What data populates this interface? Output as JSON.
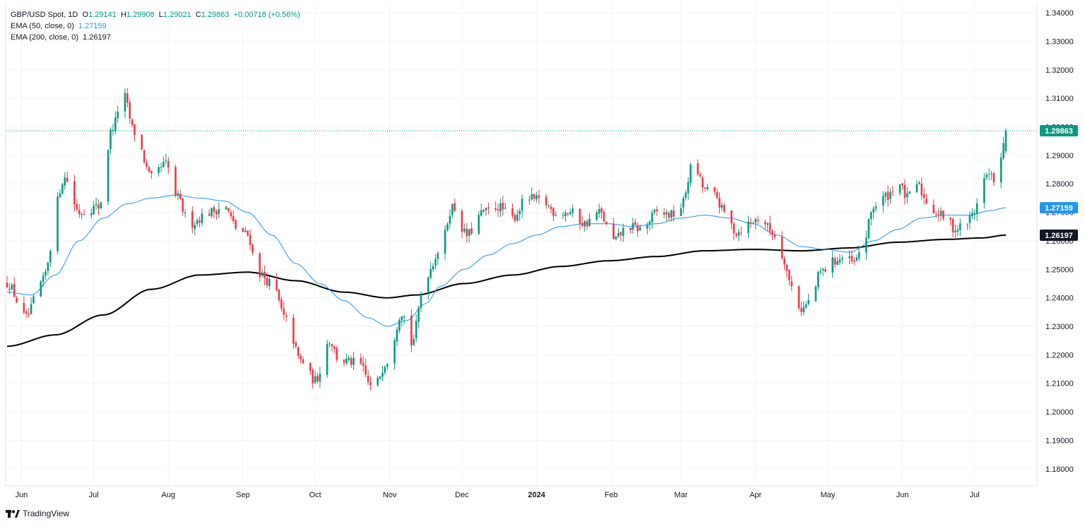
{
  "legend": {
    "symbol": "GBP/USD Spot, 1D",
    "open_label": "O",
    "open": "1.29141",
    "high_label": "H",
    "high": "1.29908",
    "low_label": "L",
    "low": "1.29021",
    "close_label": "C",
    "close": "1.29863",
    "change": "+0.00718 (+0.56%)",
    "ema50_label": "EMA (50, close, 0)",
    "ema50_value": "1.27159",
    "ema200_label": "EMA (200, close, 0)",
    "ema200_value": "1.26197"
  },
  "price_tags": {
    "last": "1.29863",
    "ema50": "1.27159",
    "ema200": "1.26197"
  },
  "branding": {
    "logo_text": "TradingView"
  },
  "colors": {
    "up": "#089981",
    "down": "#f23645",
    "ema50": "#2196f3",
    "ema200": "#000000",
    "grid": "#f0f3fa",
    "axis_text": "#131722",
    "last_price_line": "#089981"
  },
  "chart_data": {
    "type": "candlestick",
    "title": "GBP/USD Spot, 1D",
    "ylim": [
      1.174,
      1.3435
    ],
    "y_ticks": [
      "1.18000",
      "1.19000",
      "1.20000",
      "1.21000",
      "1.22000",
      "1.23000",
      "1.24000",
      "1.25000",
      "1.26000",
      "1.27000",
      "1.28000",
      "1.29000",
      "1.30000",
      "1.31000",
      "1.32000",
      "1.33000",
      "1.34000"
    ],
    "x_ticks": [
      {
        "label": "Jun",
        "day": 6
      },
      {
        "label": "Jul",
        "day": 36
      },
      {
        "label": "Aug",
        "day": 67
      },
      {
        "label": "Sep",
        "day": 98
      },
      {
        "label": "Oct",
        "day": 128
      },
      {
        "label": "Nov",
        "day": 159
      },
      {
        "label": "Dec",
        "day": 189
      },
      {
        "label": "2024",
        "day": 220
      },
      {
        "label": "Feb",
        "day": 251
      },
      {
        "label": "Mar",
        "day": 280
      },
      {
        "label": "Apr",
        "day": 311
      },
      {
        "label": "May",
        "day": 341
      },
      {
        "label": "Jun",
        "day": 372
      },
      {
        "label": "Jul",
        "day": 402
      }
    ],
    "price_anchors": [
      [
        0,
        1.245
      ],
      [
        8,
        1.233
      ],
      [
        14,
        1.245
      ],
      [
        24,
        1.282
      ],
      [
        30,
        1.27
      ],
      [
        38,
        1.272
      ],
      [
        44,
        1.3
      ],
      [
        48,
        1.312
      ],
      [
        53,
        1.298
      ],
      [
        60,
        1.282
      ],
      [
        66,
        1.287
      ],
      [
        70,
        1.276
      ],
      [
        76,
        1.266
      ],
      [
        84,
        1.27
      ],
      [
        90,
        1.272
      ],
      [
        96,
        1.264
      ],
      [
        100,
        1.262
      ],
      [
        104,
        1.249
      ],
      [
        110,
        1.245
      ],
      [
        116,
        1.232
      ],
      [
        122,
        1.218
      ],
      [
        128,
        1.211
      ],
      [
        134,
        1.225
      ],
      [
        138,
        1.218
      ],
      [
        146,
        1.217
      ],
      [
        152,
        1.208
      ],
      [
        158,
        1.218
      ],
      [
        164,
        1.235
      ],
      [
        168,
        1.224
      ],
      [
        174,
        1.248
      ],
      [
        180,
        1.257
      ],
      [
        185,
        1.272
      ],
      [
        191,
        1.262
      ],
      [
        198,
        1.27
      ],
      [
        204,
        1.272
      ],
      [
        210,
        1.268
      ],
      [
        216,
        1.275
      ],
      [
        222,
        1.274
      ],
      [
        228,
        1.27
      ],
      [
        234,
        1.27
      ],
      [
        240,
        1.266
      ],
      [
        246,
        1.27
      ],
      [
        252,
        1.26
      ],
      [
        258,
        1.265
      ],
      [
        264,
        1.264
      ],
      [
        270,
        1.27
      ],
      [
        276,
        1.269
      ],
      [
        280,
        1.272
      ],
      [
        285,
        1.287
      ],
      [
        290,
        1.278
      ],
      [
        294,
        1.276
      ],
      [
        298,
        1.27
      ],
      [
        303,
        1.263
      ],
      [
        308,
        1.266
      ],
      [
        313,
        1.268
      ],
      [
        318,
        1.263
      ],
      [
        322,
        1.255
      ],
      [
        326,
        1.244
      ],
      [
        330,
        1.236
      ],
      [
        334,
        1.239
      ],
      [
        338,
        1.249
      ],
      [
        344,
        1.253
      ],
      [
        348,
        1.254
      ],
      [
        352,
        1.252
      ],
      [
        356,
        1.26
      ],
      [
        360,
        1.272
      ],
      [
        366,
        1.276
      ],
      [
        370,
        1.281
      ],
      [
        374,
        1.275
      ],
      [
        378,
        1.28
      ],
      [
        382,
        1.274
      ],
      [
        386,
        1.27
      ],
      [
        390,
        1.268
      ],
      [
        394,
        1.264
      ],
      [
        398,
        1.266
      ],
      [
        402,
        1.27
      ],
      [
        404,
        1.278
      ],
      [
        407,
        1.283
      ],
      [
        410,
        1.282
      ],
      [
        413,
        1.288
      ],
      [
        415,
        1.2986
      ]
    ],
    "ema50_anchors": [
      [
        0,
        1.242
      ],
      [
        10,
        1.241
      ],
      [
        20,
        1.248
      ],
      [
        30,
        1.26
      ],
      [
        40,
        1.268
      ],
      [
        50,
        1.273
      ],
      [
        60,
        1.275
      ],
      [
        70,
        1.276
      ],
      [
        80,
        1.275
      ],
      [
        90,
        1.274
      ],
      [
        100,
        1.27
      ],
      [
        110,
        1.262
      ],
      [
        120,
        1.252
      ],
      [
        130,
        1.245
      ],
      [
        140,
        1.239
      ],
      [
        150,
        1.233
      ],
      [
        158,
        1.23
      ],
      [
        166,
        1.232
      ],
      [
        174,
        1.238
      ],
      [
        180,
        1.244
      ],
      [
        190,
        1.25
      ],
      [
        200,
        1.255
      ],
      [
        210,
        1.259
      ],
      [
        220,
        1.262
      ],
      [
        230,
        1.265
      ],
      [
        240,
        1.266
      ],
      [
        250,
        1.266
      ],
      [
        260,
        1.265
      ],
      [
        270,
        1.266
      ],
      [
        280,
        1.268
      ],
      [
        290,
        1.269
      ],
      [
        300,
        1.268
      ],
      [
        310,
        1.266
      ],
      [
        320,
        1.262
      ],
      [
        330,
        1.258
      ],
      [
        340,
        1.257
      ],
      [
        350,
        1.256
      ],
      [
        360,
        1.26
      ],
      [
        370,
        1.264
      ],
      [
        380,
        1.268
      ],
      [
        390,
        1.269
      ],
      [
        400,
        1.269
      ],
      [
        408,
        1.2705
      ],
      [
        415,
        1.2716
      ]
    ],
    "ema200_anchors": [
      [
        0,
        1.223
      ],
      [
        20,
        1.227
      ],
      [
        40,
        1.234
      ],
      [
        60,
        1.243
      ],
      [
        80,
        1.248
      ],
      [
        100,
        1.249
      ],
      [
        120,
        1.246
      ],
      [
        140,
        1.242
      ],
      [
        158,
        1.24
      ],
      [
        170,
        1.241
      ],
      [
        190,
        1.245
      ],
      [
        210,
        1.248
      ],
      [
        230,
        1.251
      ],
      [
        250,
        1.253
      ],
      [
        270,
        1.2545
      ],
      [
        290,
        1.2565
      ],
      [
        310,
        1.257
      ],
      [
        330,
        1.2565
      ],
      [
        350,
        1.2575
      ],
      [
        370,
        1.2595
      ],
      [
        390,
        1.2605
      ],
      [
        405,
        1.261
      ],
      [
        415,
        1.262
      ]
    ],
    "last_price": 1.29863,
    "series": [
      {
        "name": "EMA (50, close, 0)",
        "last": 1.27159
      },
      {
        "name": "EMA (200, close, 0)",
        "last": 1.26197
      }
    ]
  }
}
